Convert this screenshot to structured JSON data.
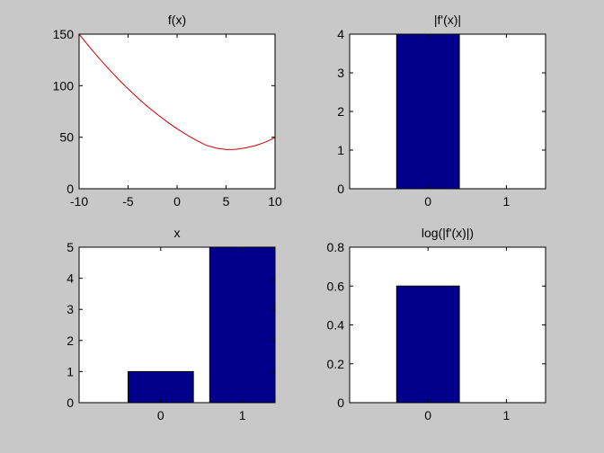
{
  "figure": {
    "background": "#c8c8c8"
  },
  "chart_data": [
    {
      "type": "line",
      "title": "f(x)",
      "xlim": [
        -10,
        10
      ],
      "ylim": [
        0,
        150
      ],
      "xticks": [
        "-10",
        "-5",
        "0",
        "5",
        "10"
      ],
      "yticks": [
        "0",
        "50",
        "100",
        "150"
      ],
      "series": [
        {
          "color": "#cc0000",
          "x": [
            -10,
            -9,
            -8,
            -7,
            -6,
            -5,
            -4,
            -3,
            -2,
            -1,
            0,
            1,
            2,
            3,
            4,
            5,
            6,
            7,
            8,
            9,
            10
          ],
          "y": [
            150.0,
            138.3,
            127.1,
            116.5,
            106.4,
            97.0,
            88.0,
            79.7,
            72.0,
            64.8,
            58.2,
            52.2,
            46.8,
            42.0,
            39.5,
            38.0,
            38.3,
            39.7,
            41.9,
            45.2,
            49.6
          ]
        }
      ]
    },
    {
      "type": "bar",
      "title": "|f'(x)|",
      "xlim": [
        -1,
        1.5
      ],
      "ylim": [
        0,
        4
      ],
      "xticks": [
        "0",
        "1"
      ],
      "yticks": [
        "0",
        "1",
        "2",
        "3",
        "4"
      ],
      "bar_color": "#00008b",
      "x": [
        0
      ],
      "values": [
        4
      ]
    },
    {
      "type": "bar",
      "title": "x",
      "xlim": [
        -1,
        1.4
      ],
      "ylim": [
        0,
        5
      ],
      "xticks": [
        "0",
        "1"
      ],
      "yticks": [
        "0",
        "1",
        "2",
        "3",
        "4",
        "5"
      ],
      "bar_color": "#00008b",
      "x": [
        0,
        1
      ],
      "values": [
        1,
        5
      ]
    },
    {
      "type": "bar",
      "title": "log(|f'(x)|)",
      "xlim": [
        -1,
        1.5
      ],
      "ylim": [
        0,
        0.8
      ],
      "xticks": [
        "0",
        "1"
      ],
      "yticks": [
        "0",
        "0.2",
        "0.4",
        "0.6",
        "0.8"
      ],
      "bar_color": "#00008b",
      "x": [
        0
      ],
      "values": [
        0.6
      ]
    }
  ]
}
